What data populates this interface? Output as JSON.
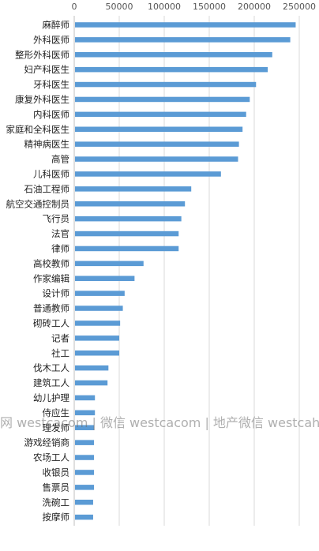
{
  "chart_data": {
    "type": "bar",
    "orientation": "horizontal",
    "title": "",
    "xlabel": "",
    "ylabel": "",
    "xlim": [
      0,
      260000
    ],
    "x_ticks": [
      0,
      50000,
      100000,
      150000,
      200000,
      250000
    ],
    "x_tick_labels": [
      "0",
      "50000",
      "100000",
      "150000",
      "200000",
      "250000"
    ],
    "x_axis_position": "top",
    "grid": "vertical",
    "bar_color": "#5b9bd5",
    "categories": [
      "麻醉师",
      "外科医师",
      "整形外科医师",
      "妇产科医生",
      "牙科医生",
      "康复外科医生",
      "内科医师",
      "家庭和全科医生",
      "精神病医生",
      "高管",
      "儿科医师",
      "石油工程师",
      "航空交通控制员",
      "飞行员",
      "法官",
      "律师",
      "高校教师",
      "作家编辑",
      "设计师",
      "普通教师",
      "砌砖工人",
      "记者",
      "社工",
      "伐木工人",
      "建筑工人",
      "幼儿护理",
      "侍应生",
      "理发师",
      "游戏经销商",
      "农场工人",
      "收银员",
      "售票员",
      "洗碗工",
      "按摩师"
    ],
    "values": [
      246000,
      240000,
      220000,
      215000,
      202000,
      195000,
      191000,
      187000,
      183000,
      182000,
      163000,
      130000,
      123000,
      119000,
      116000,
      116000,
      77000,
      67000,
      56000,
      54000,
      51000,
      50000,
      50000,
      38000,
      37000,
      23000,
      23000,
      22000,
      22000,
      22000,
      22000,
      22000,
      21000,
      21000
    ]
  },
  "watermark": {
    "text": "网 westcacom | 微信 westcacom | 地产微信 westcaho"
  }
}
